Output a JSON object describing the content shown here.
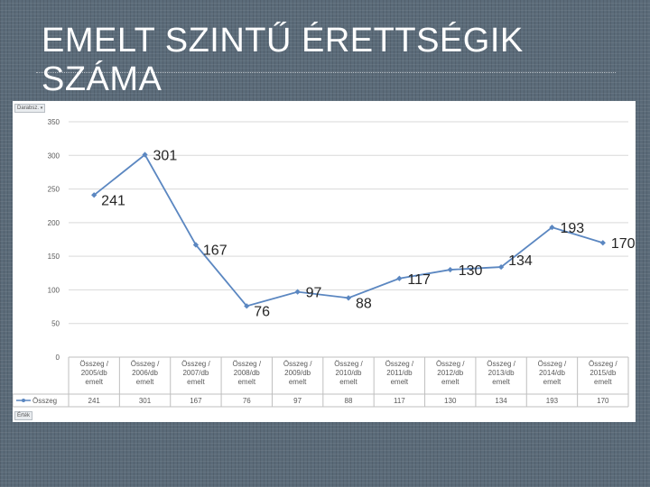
{
  "slide": {
    "title": "EMELT SZINTŰ ÉRETTSÉGIK SZÁMA"
  },
  "pivot": {
    "top_field_label": "Darabsz.",
    "bottom_field_label": "Érték"
  },
  "chart_data": {
    "type": "line",
    "title": "",
    "xlabel": "",
    "ylabel": "",
    "ylim": [
      0,
      350
    ],
    "y_ticks": [
      0,
      50,
      100,
      150,
      200,
      250,
      300,
      350
    ],
    "grid": true,
    "categories": [
      [
        "Összeg /",
        "2005/db",
        "emelt"
      ],
      [
        "Összeg /",
        "2006/db",
        "emelt"
      ],
      [
        "Összeg /",
        "2007/db",
        "emelt"
      ],
      [
        "Összeg /",
        "2008/db",
        "emelt"
      ],
      [
        "Összeg /",
        "2009/db",
        "emelt"
      ],
      [
        "Összeg /",
        "2010/db",
        "emelt"
      ],
      [
        "Összeg /",
        "2011/db",
        "emelt"
      ],
      [
        "Összeg /",
        "2012/db",
        "emelt"
      ],
      [
        "Összeg /",
        "2013/db",
        "emelt"
      ],
      [
        "Összeg /",
        "2014/db",
        "emelt"
      ],
      [
        "Összeg /",
        "2015/db",
        "emelt"
      ]
    ],
    "series": [
      {
        "name": "Összeg",
        "values": [
          241,
          301,
          167,
          76,
          97,
          88,
          117,
          130,
          134,
          193,
          170
        ],
        "color": "#5b87c1"
      }
    ],
    "data_label_offsets": [
      "right-below",
      "right",
      "right-below",
      "right-below",
      "right",
      "right-below",
      "right",
      "right",
      "right-above",
      "right",
      "right"
    ],
    "data_table": true,
    "legend": "bottom-left (data table)"
  },
  "colors": {
    "line": "#5b87c1",
    "grid": "#d9d9d9",
    "axis_text": "#595959",
    "label_text": "#262626",
    "table_border": "#bfbfbf"
  }
}
